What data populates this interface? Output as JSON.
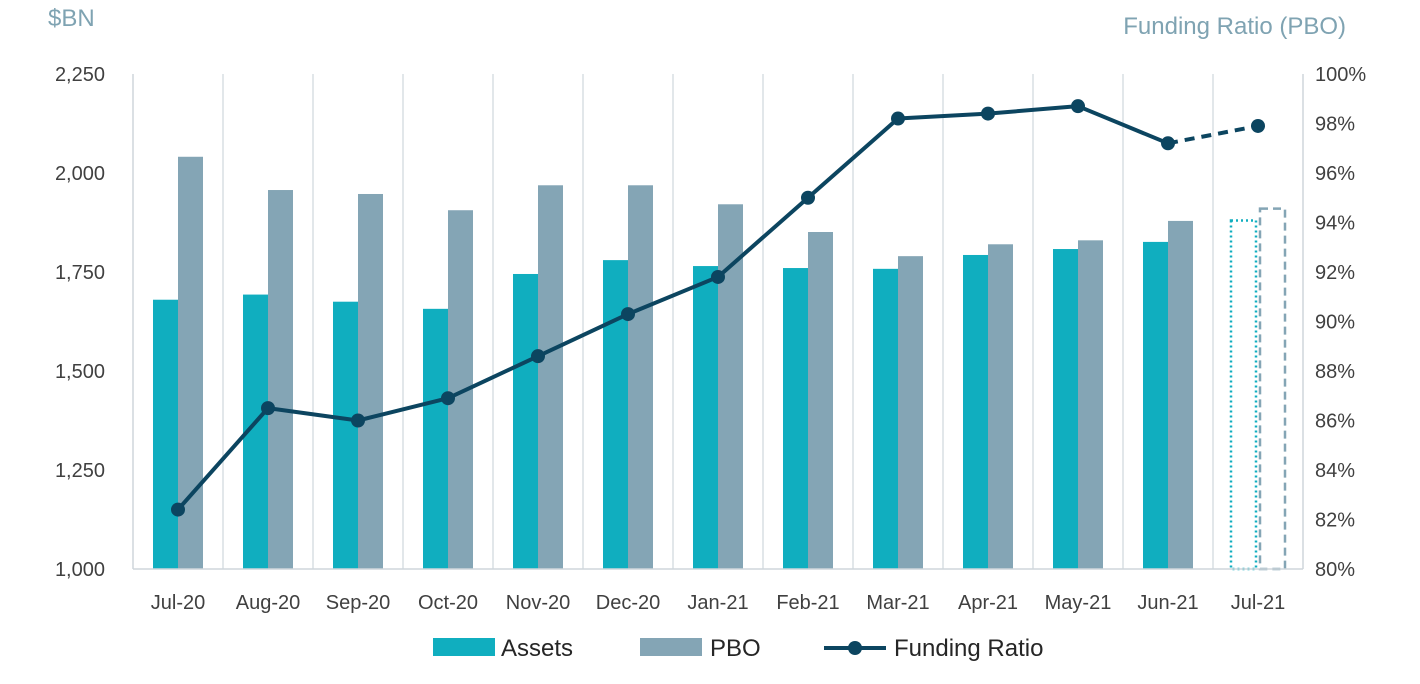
{
  "chart_data": {
    "type": "bar",
    "title": "",
    "y_left_label": "$BN",
    "y_right_label": "Funding Ratio (PBO)",
    "categories": [
      "Jul-20",
      "Aug-20",
      "Sep-20",
      "Oct-20",
      "Nov-20",
      "Dec-20",
      "Jan-21",
      "Feb-21",
      "Mar-21",
      "Apr-21",
      "May-21",
      "Jun-21",
      "Jul-21"
    ],
    "y_left_lim": [
      1000,
      2250
    ],
    "y_left_ticks": [
      "1,000",
      "1,250",
      "1,500",
      "1,750",
      "2,000",
      "2,250"
    ],
    "y_right_lim": [
      80,
      100
    ],
    "y_right_ticks": [
      "80%",
      "82%",
      "84%",
      "86%",
      "88%",
      "90%",
      "92%",
      "94%",
      "96%",
      "98%",
      "100%"
    ],
    "grid": "vertical",
    "legend_position": "bottom",
    "legend": [
      "Assets",
      "PBO",
      "Funding Ratio"
    ],
    "series": [
      {
        "name": "Assets",
        "axis": "left",
        "kind": "bar",
        "color": "#10aebf",
        "values": [
          1680,
          1693,
          1675,
          1657,
          1745,
          1780,
          1765,
          1760,
          1758,
          1793,
          1808,
          1826,
          1880
        ]
      },
      {
        "name": "PBO",
        "axis": "left",
        "kind": "bar",
        "color": "#84a5b5",
        "values": [
          2041,
          1957,
          1947,
          1906,
          1969,
          1969,
          1921,
          1851,
          1790,
          1820,
          1830,
          1879,
          1910
        ]
      },
      {
        "name": "Funding Ratio",
        "axis": "right",
        "kind": "line",
        "color": "#0c4560",
        "values": [
          82.4,
          86.5,
          86.0,
          86.9,
          88.6,
          90.3,
          91.8,
          95.0,
          98.2,
          98.4,
          98.7,
          97.2,
          97.9
        ]
      }
    ],
    "estimated_last_category": "Jul-21"
  }
}
